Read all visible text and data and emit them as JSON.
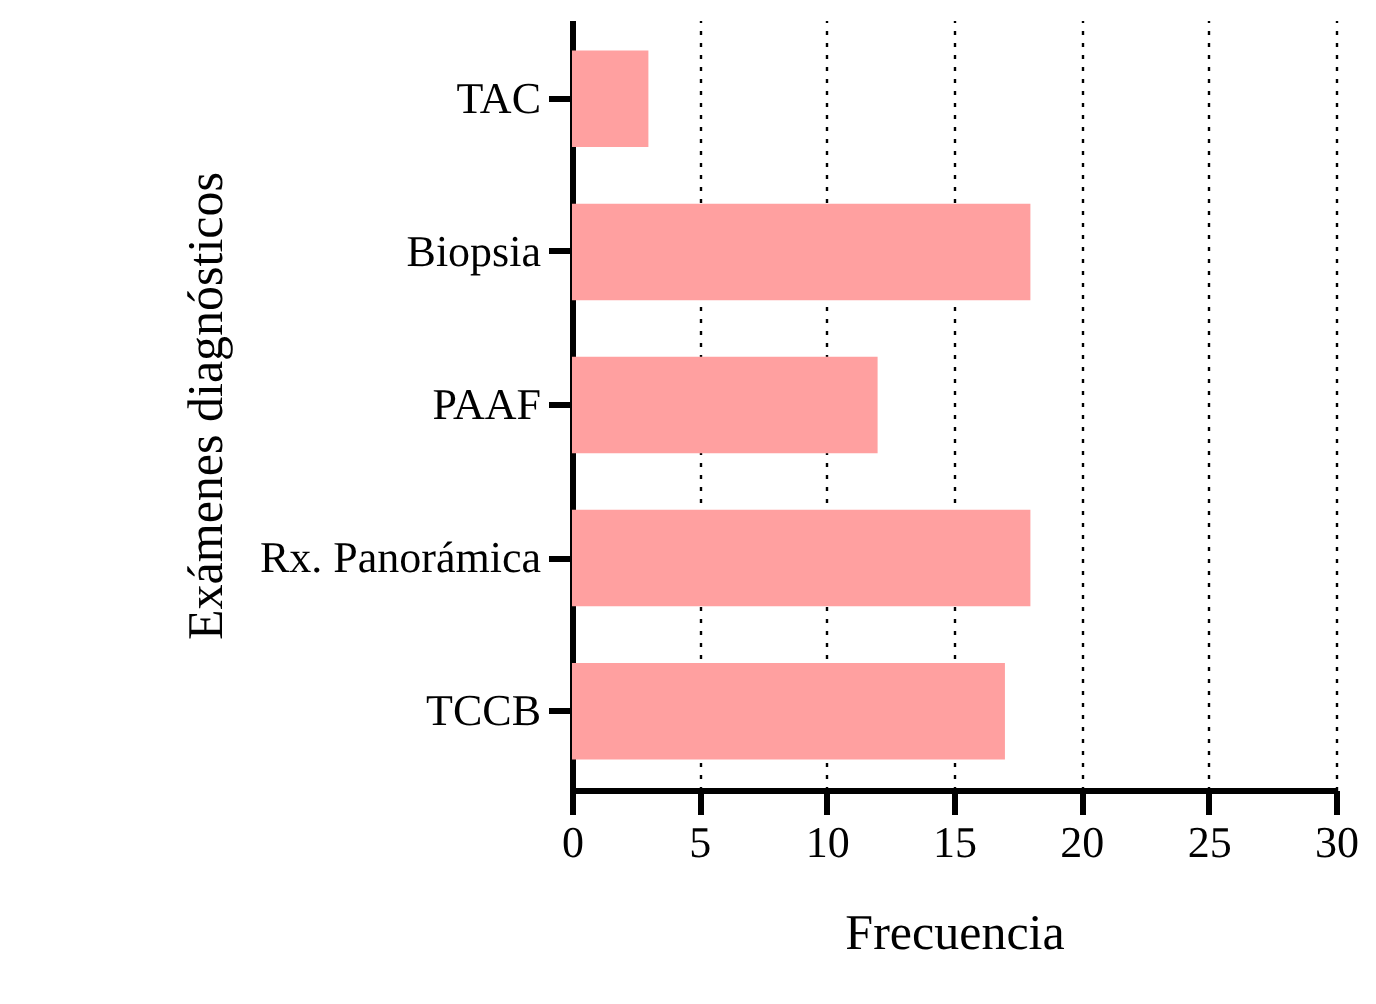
{
  "chart_data": {
    "type": "bar",
    "orientation": "horizontal",
    "categories": [
      "TAC",
      "Biopsia",
      "PAAF",
      "Rx. Panorámica",
      "TCCB"
    ],
    "values": [
      3,
      18,
      12,
      18,
      17
    ],
    "color": "#ffa0a0",
    "xlabel": "Frecuencia",
    "ylabel": "Exámenes diagnósticos",
    "xlim": [
      0,
      30
    ],
    "xticks": [
      0,
      5,
      10,
      15,
      20,
      25,
      30
    ],
    "grid": "x"
  }
}
